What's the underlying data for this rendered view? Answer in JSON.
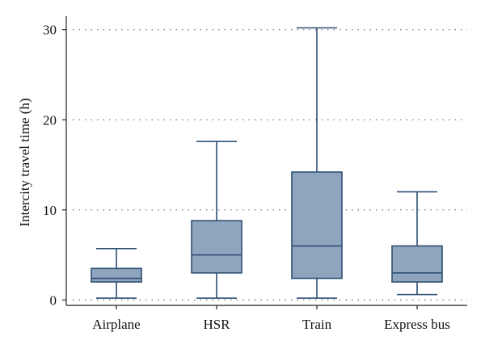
{
  "chart_data": {
    "type": "box",
    "title": "",
    "xlabel": "",
    "ylabel": "Intercity travel time (h)",
    "ylim": [
      -0.6,
      31.5
    ],
    "yticks": [
      0,
      10,
      20,
      30
    ],
    "grid": "horizontal dotted",
    "colors": {
      "box_fill": "#8fa4bd",
      "box_stroke": "#2e4f74",
      "grid": "#7a7a7a"
    },
    "categories": [
      "Airplane",
      "HSR",
      "Train",
      "Express bus"
    ],
    "boxes": [
      {
        "category": "Airplane",
        "min": 0.2,
        "q1": 2.0,
        "median": 2.4,
        "q3": 3.5,
        "max": 5.7
      },
      {
        "category": "HSR",
        "min": 0.2,
        "q1": 3.0,
        "median": 5.0,
        "q3": 8.8,
        "max": 17.6
      },
      {
        "category": "Train",
        "min": 0.2,
        "q1": 2.4,
        "median": 6.0,
        "q3": 14.2,
        "max": 30.2
      },
      {
        "category": "Express bus",
        "min": 0.6,
        "q1": 2.0,
        "median": 3.0,
        "q3": 6.0,
        "max": 12.0
      }
    ]
  }
}
